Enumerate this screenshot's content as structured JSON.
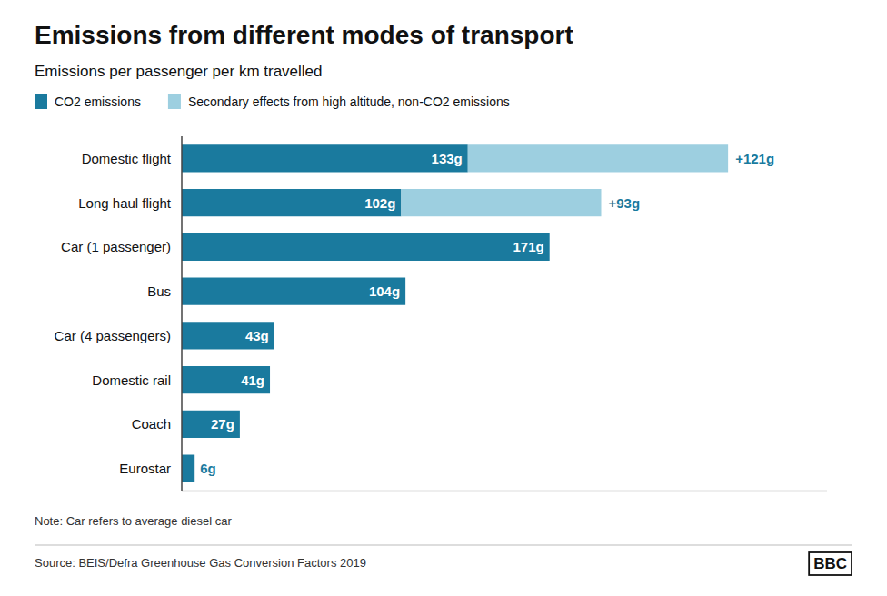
{
  "chart_data": {
    "type": "bar",
    "orientation": "horizontal",
    "stacked": true,
    "title": "Emissions from different modes of transport",
    "subtitle": "Emissions per passenger per km travelled",
    "categories": [
      "Domestic flight",
      "Long haul flight",
      "Car (1 passenger)",
      "Bus",
      "Car (4 passengers)",
      "Domestic rail",
      "Coach",
      "Eurostar"
    ],
    "series": [
      {
        "name": "CO2 emissions",
        "color": "#1a7a9e",
        "values": [
          133,
          102,
          171,
          104,
          43,
          41,
          27,
          6
        ],
        "value_labels": [
          "133g",
          "102g",
          "171g",
          "104g",
          "43g",
          "41g",
          "27g",
          "6g"
        ]
      },
      {
        "name": "Secondary effects from high altitude, non-CO2 emissions",
        "color": "#9dcfe0",
        "values": [
          121,
          93,
          0,
          0,
          0,
          0,
          0,
          0
        ],
        "value_labels": [
          "+121g",
          "+93g",
          null,
          null,
          null,
          null,
          null,
          null
        ]
      }
    ],
    "xlim": [
      0,
      300
    ],
    "data_labels": true,
    "tick_labels": "y",
    "grid": false,
    "legend": "top",
    "annotations": [
      "Note: Car refers to average diesel car",
      "Source: BEIS/Defra Greenhouse Gas Conversion Factors 2019",
      "BBC"
    ]
  }
}
